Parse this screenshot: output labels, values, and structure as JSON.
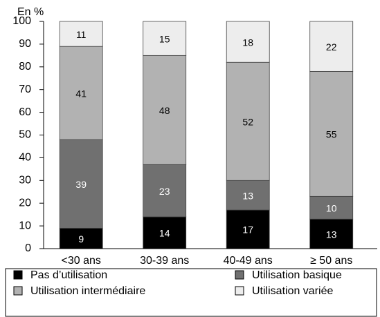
{
  "chart_data": {
    "type": "stacked_bar",
    "y_axis_label": "En %",
    "categories": [
      "<30 ans",
      "30-39 ans",
      "40-49 ans",
      "≥ 50 ans"
    ],
    "series": [
      {
        "name": "Pas d’utilisation",
        "color": "#000000",
        "values": [
          9,
          14,
          17,
          13
        ]
      },
      {
        "name": "Utilisation basique",
        "color": "#707070",
        "values": [
          39,
          23,
          13,
          10
        ]
      },
      {
        "name": "Utilisation intermédiaire",
        "color": "#b2b2b2",
        "values": [
          41,
          48,
          52,
          55
        ]
      },
      {
        "name": "Utilisation variée",
        "color": "#ededed",
        "values": [
          11,
          15,
          18,
          22
        ]
      }
    ],
    "ylim": [
      0,
      100
    ],
    "yticks": [
      0,
      10,
      20,
      30,
      40,
      50,
      60,
      70,
      80,
      90,
      100
    ],
    "legend": "bottom"
  }
}
